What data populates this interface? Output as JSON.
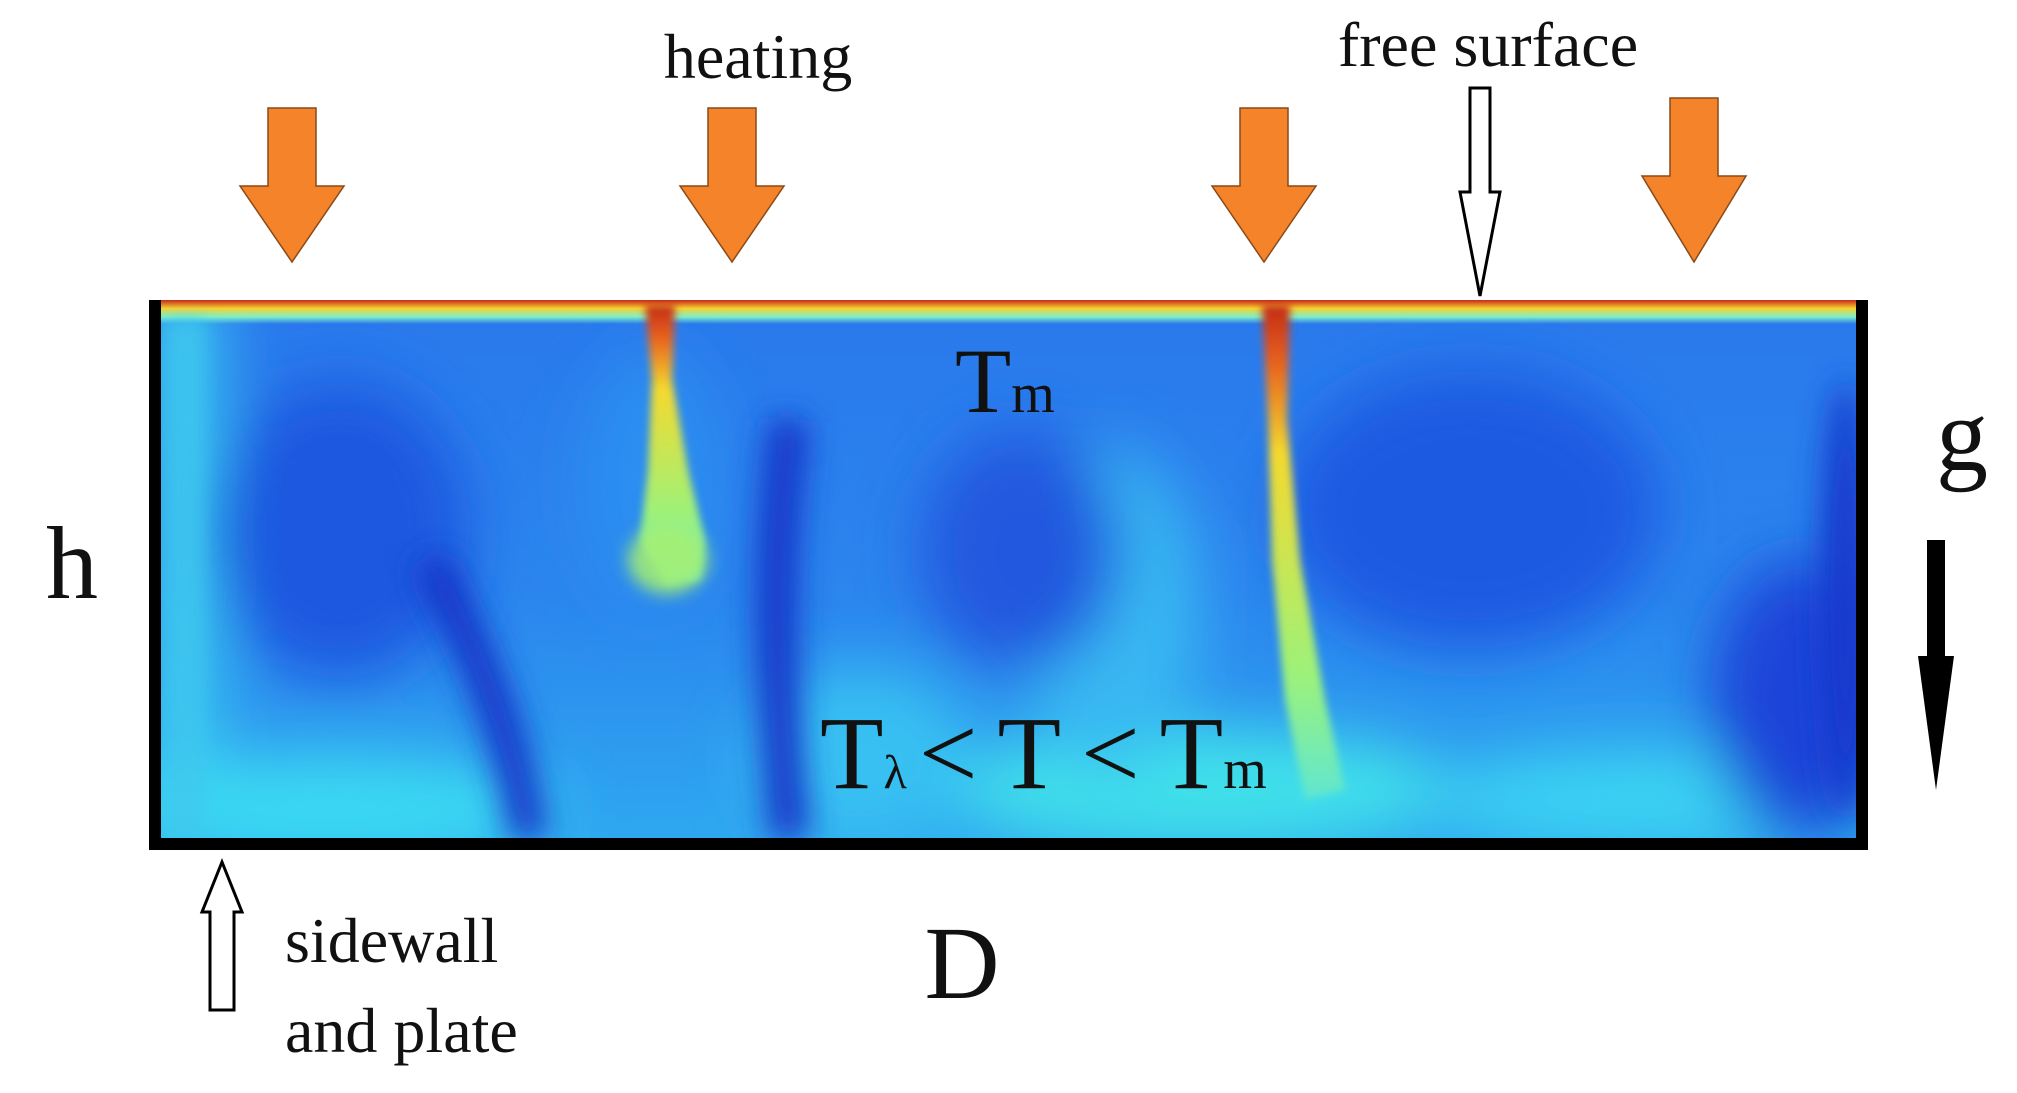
{
  "labels": {
    "heating": "heating",
    "free_surface": "free surface",
    "t_m": "T",
    "t_m_sub": "m",
    "g": "g",
    "h": "h",
    "D": "D",
    "sidewall_line1": "sidewall",
    "sidewall_line2": "and plate",
    "ineq_T1": "T",
    "ineq_lambda": "λ",
    "ineq_lt1": "<",
    "ineq_T2": "T",
    "ineq_lt2": "<",
    "ineq_T3": "T",
    "ineq_m": "m"
  },
  "colors": {
    "heating_arrow": "#f5832a",
    "field_deep": "#1a3fd6",
    "field_mid": "#2a8cf0",
    "field_light": "#35d8f2",
    "plume_hot": "#d1321a",
    "plume_warm": "#f3d62e",
    "wall": "#000000"
  },
  "icons": {
    "heating_arrows": "down-arrow-icon",
    "free_surface_pointer": "hollow-down-arrow-icon",
    "sidewall_pointer": "hollow-up-arrow-icon",
    "gravity": "gravity-down-arrow-icon"
  }
}
